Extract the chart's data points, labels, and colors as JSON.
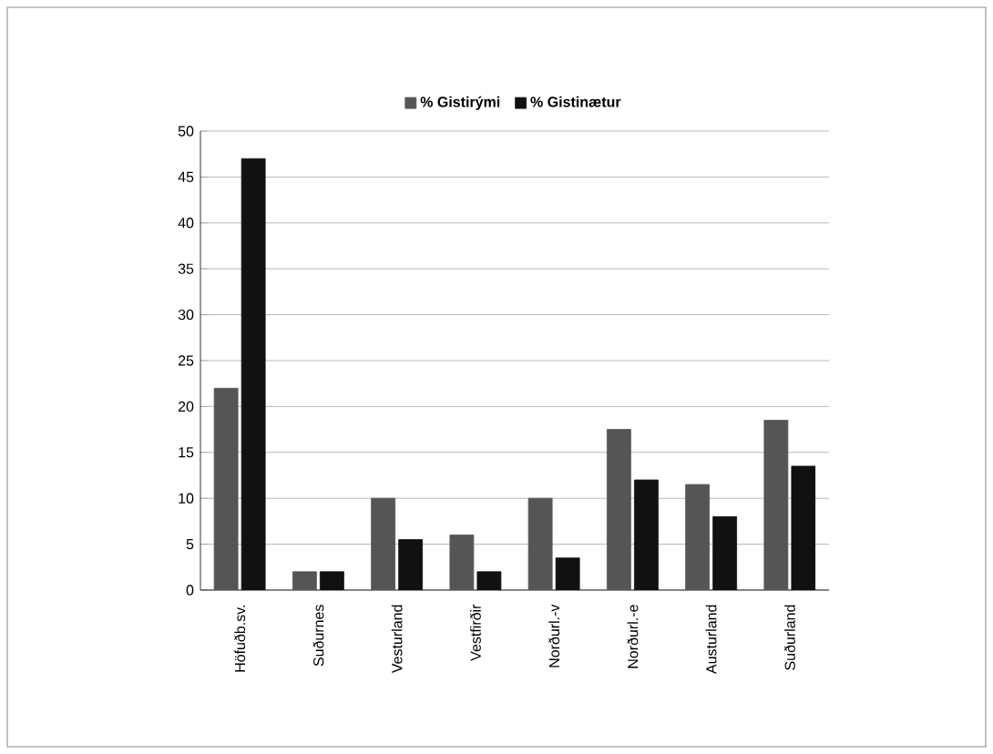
{
  "chart_data": {
    "type": "bar",
    "categories": [
      "Höfuðb.sv.",
      "Suðurnes",
      "Vesturland",
      "Vestfirðir",
      "Norðurl.-v",
      "Norðurl.-e",
      "Austurland",
      "Suðurland"
    ],
    "series": [
      {
        "name": "% Gistirými",
        "color": "#555555",
        "values": [
          22,
          2,
          10,
          6,
          10,
          17.5,
          11.5,
          18.5
        ]
      },
      {
        "name": "% Gistinætur",
        "color": "#111111",
        "values": [
          47,
          2,
          5.5,
          2,
          3.5,
          12,
          8,
          13.5
        ]
      }
    ],
    "ylim": [
      0,
      50
    ],
    "yticks": [
      0,
      5,
      10,
      15,
      20,
      25,
      30,
      35,
      40,
      45,
      50
    ],
    "grid": "y",
    "legend": "top"
  }
}
